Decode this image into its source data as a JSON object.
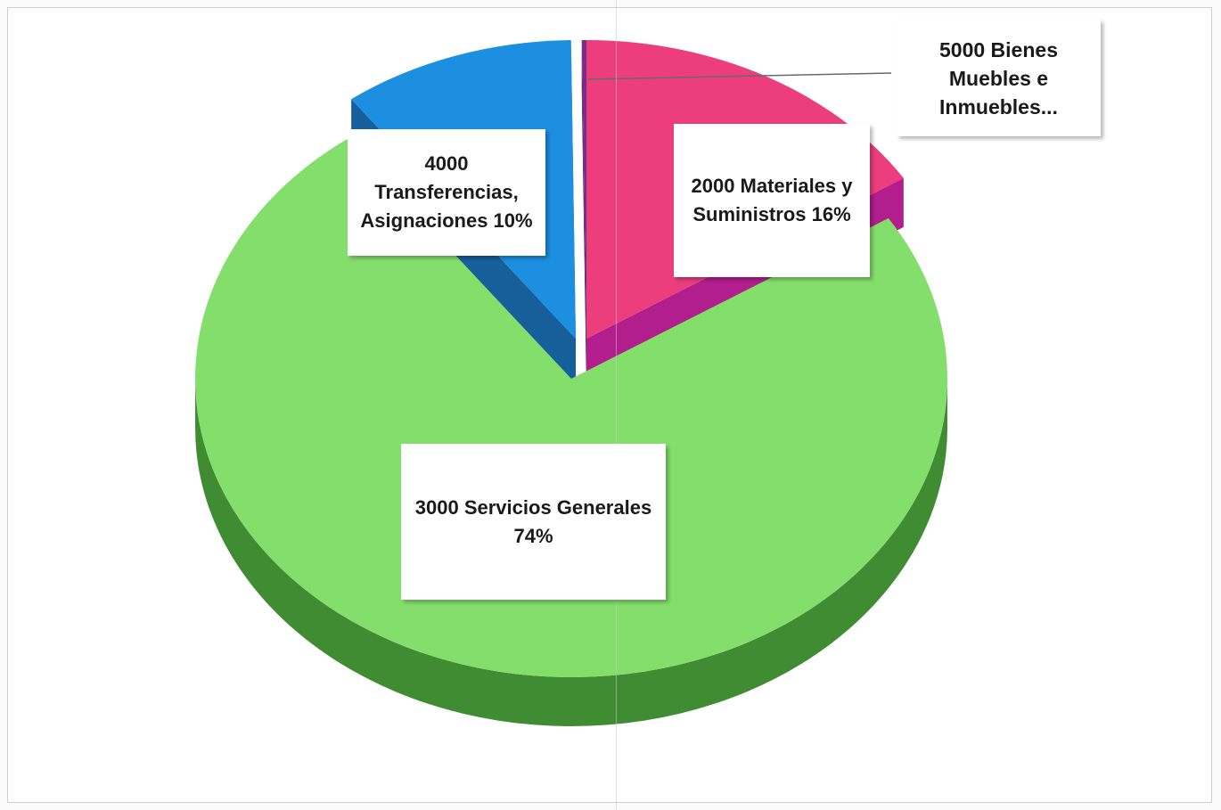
{
  "chart_data": {
    "type": "pie",
    "style": "3d-exploded",
    "title": "",
    "slices": [
      {
        "name": "2000 Materiales y Suministros",
        "value": 16,
        "color": "#ec3d7c",
        "side_color": "#b21e8e"
      },
      {
        "name": "3000 Servicios Generales",
        "value": 74,
        "color": "#84de6c",
        "side_color": "#3f8c32"
      },
      {
        "name": "4000 Transferencias, Asignaciones",
        "value": 10,
        "color": "#1d8fe0",
        "side_color": "#165f9a"
      },
      {
        "name": "5000 Bienes Muebles e Inmuebles",
        "value": 0.2,
        "color": "#7a2b86",
        "side_color": "#4e1d57"
      }
    ],
    "labels": [
      {
        "key": "l4000",
        "lines": [
          "4000",
          "Transferencias,",
          "Asignaciones 10%"
        ]
      },
      {
        "key": "l2000",
        "lines": [
          "2000 Materiales y",
          "Suministros 16%"
        ]
      },
      {
        "key": "l3000",
        "lines": [
          "3000 Servicios Generales",
          "74%"
        ]
      },
      {
        "key": "l5000",
        "lines": [
          "5000 Bienes",
          "Muebles e",
          "Inmuebles..."
        ]
      }
    ],
    "legend": "none"
  }
}
